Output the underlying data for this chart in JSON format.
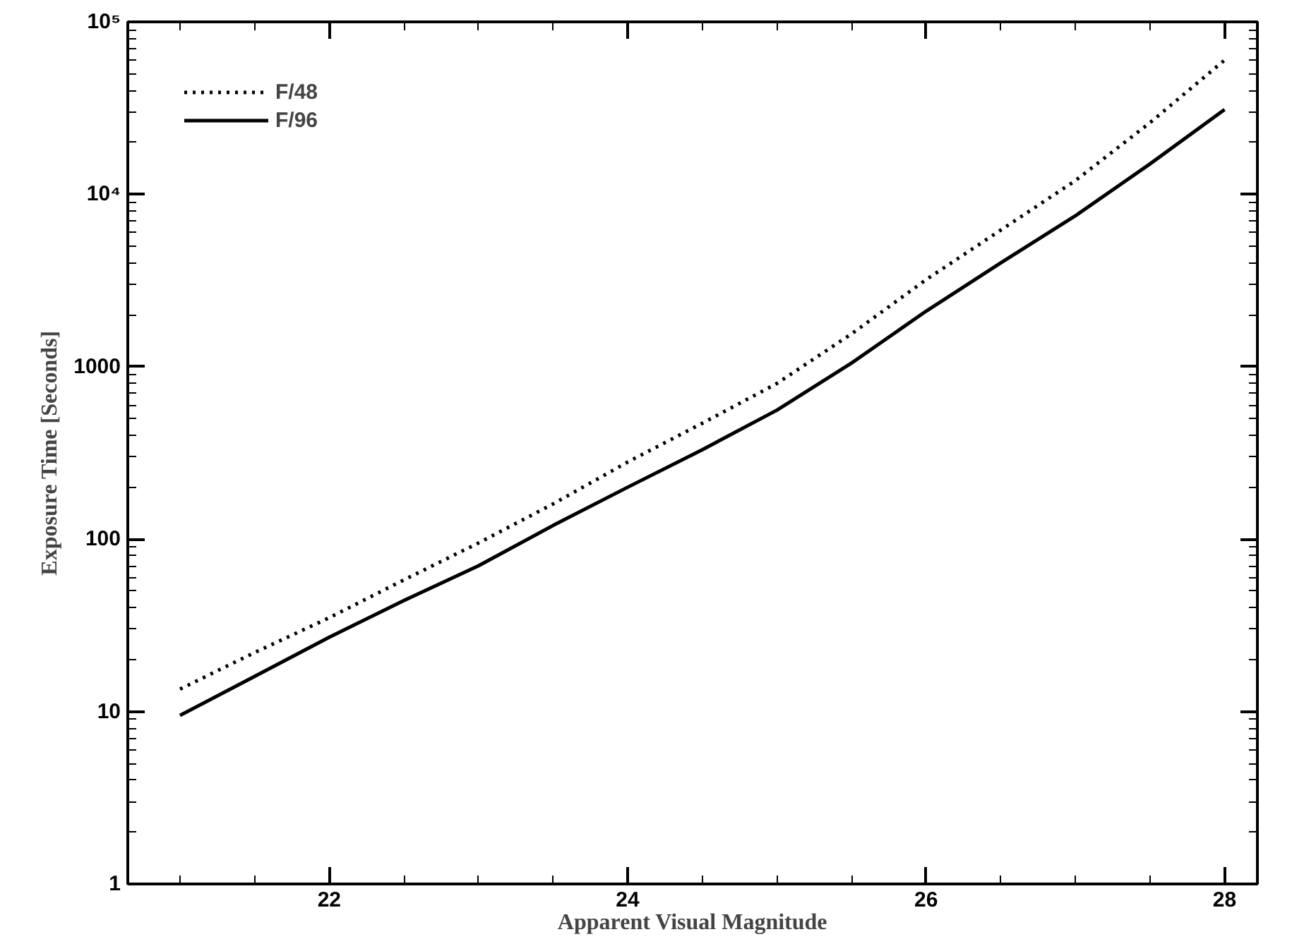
{
  "chart_data": {
    "type": "line",
    "xlabel": "Apparent Visual Magnitude",
    "ylabel": "Exposure Time [Seconds]",
    "x": [
      21,
      21.5,
      22,
      22.5,
      23,
      23.5,
      24,
      24.5,
      25,
      25.5,
      26,
      26.5,
      27,
      27.5,
      28
    ],
    "series": [
      {
        "name": "F/48",
        "color": "#000000",
        "line_style": "dotted",
        "values": [
          13.5,
          22,
          35,
          58,
          95,
          160,
          280,
          470,
          800,
          1550,
          3200,
          6200,
          12000,
          26000,
          60000
        ]
      },
      {
        "name": "F/96",
        "color": "#000000",
        "line_style": "solid",
        "values": [
          9.5,
          16,
          27,
          44,
          70,
          120,
          200,
          330,
          560,
          1050,
          2100,
          4000,
          7500,
          15000,
          31000
        ]
      }
    ],
    "xlim": [
      20.65,
      28.22
    ],
    "xticks": [
      22,
      24,
      26,
      28
    ],
    "ylim": [
      1,
      100000
    ],
    "yticks": [
      1,
      10,
      100,
      1000,
      {
        "value": 10000,
        "label": "10⁴"
      },
      {
        "value": 100000,
        "label": "10⁵"
      }
    ],
    "log": "y",
    "grid": false,
    "legend": "top left",
    "marker": "none"
  }
}
